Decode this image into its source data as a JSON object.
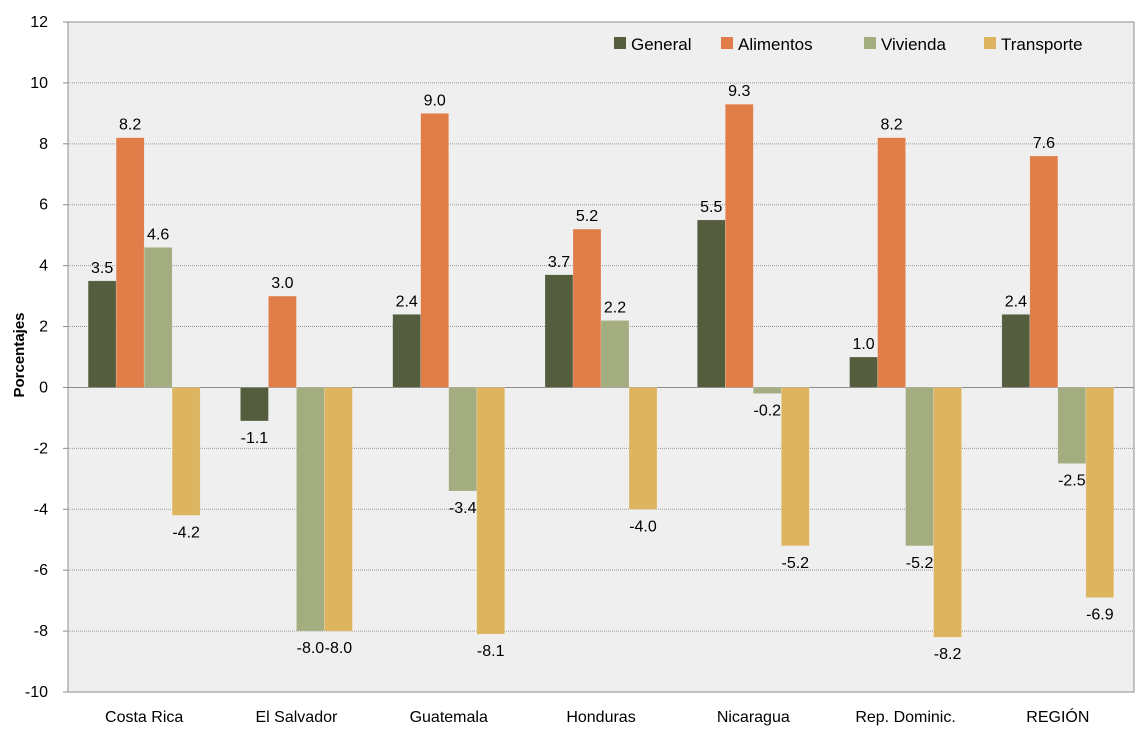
{
  "chart_data": {
    "type": "bar",
    "ylabel": "Porcentajes",
    "xlabel": "",
    "ylim": [
      -10,
      12
    ],
    "ytick_step": 2,
    "grid": true,
    "legend_position": "top-right",
    "categories": [
      "Costa Rica",
      "El Salvador",
      "Guatemala",
      "Honduras",
      "Nicaragua",
      "Rep. Dominic.",
      "REGIÓN"
    ],
    "series": [
      {
        "name": "General",
        "color": "#555d3f",
        "values": [
          3.5,
          -1.1,
          2.4,
          3.7,
          5.5,
          1.0,
          2.4
        ]
      },
      {
        "name": "Alimentos",
        "color": "#e07d48",
        "values": [
          8.2,
          3.0,
          9.0,
          5.2,
          9.3,
          8.2,
          7.6
        ]
      },
      {
        "name": "Vivienda",
        "color": "#a3ad80",
        "values": [
          4.6,
          -8.0,
          -3.4,
          2.2,
          -0.2,
          -5.2,
          -2.5
        ]
      },
      {
        "name": "Transporte",
        "color": "#ddb560",
        "values": [
          -4.2,
          -8.0,
          -8.1,
          -4.0,
          -5.2,
          -8.2,
          -6.9
        ]
      }
    ],
    "data_labels": [
      [
        "3.5",
        "-1.1",
        "2.4",
        "3.7",
        "5.5",
        "1.0",
        "2.4"
      ],
      [
        "8.2",
        "3.0",
        "9.0",
        "5.2",
        "9.3",
        "8.2",
        "7.6"
      ],
      [
        "4.6",
        "-8.0",
        "-3.4",
        "2.2",
        "-0.2",
        "-5.2",
        "-2.5"
      ],
      [
        "-4.2",
        "-8.0",
        "-8.1",
        "-4.0",
        "-5.2",
        "-8.2",
        "-6.9"
      ]
    ]
  }
}
